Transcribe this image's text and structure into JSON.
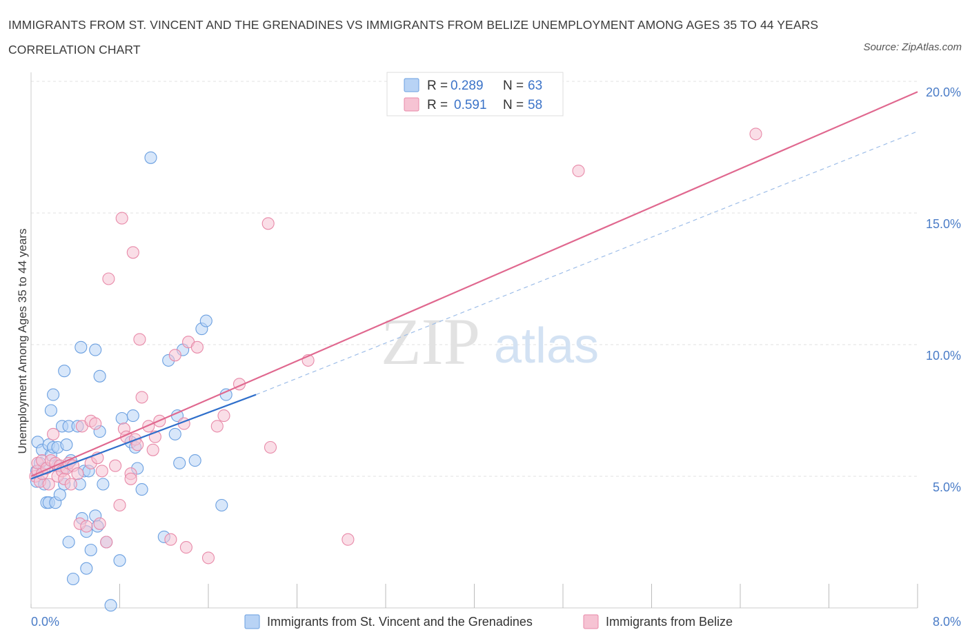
{
  "header": {
    "title": "IMMIGRANTS FROM ST. VINCENT AND THE GRENADINES VS IMMIGRANTS FROM BELIZE UNEMPLOYMENT AMONG AGES 35 TO 44 YEARS CORRELATION CHART",
    "source": "Source: ZipAtlas.com"
  },
  "watermark": {
    "zip": "ZIP",
    "atlas": "atlas"
  },
  "colors": {
    "blue": "#6a9fe0",
    "blue_fill": "#b8d3f5",
    "blue_line": "#2f6fcb",
    "pink": "#e889a8",
    "pink_fill": "#f6c3d3",
    "pink_line": "#e0688f",
    "grid": "#e0e0e0",
    "tick_label": "#4a7cc7"
  },
  "legend": {
    "rows": [
      {
        "r_label": "R =",
        "r_value": "0.289",
        "n_label": "N =",
        "n_value": "63"
      },
      {
        "r_label": "R =",
        "r_value": "0.591",
        "n_label": "N =",
        "n_value": "58"
      }
    ]
  },
  "chart_data": {
    "type": "scatter",
    "title": "IMMIGRANTS FROM ST. VINCENT AND THE GRENADINES VS IMMIGRANTS FROM BELIZE UNEMPLOYMENT AMONG AGES 35 TO 44 YEARS CORRELATION CHART",
    "xlabel": "",
    "ylabel": "Unemployment Among Ages 35 to 44 years",
    "xlim": [
      0,
      8
    ],
    "ylim": [
      0,
      20
    ],
    "x_tick_labels": [
      "0.0%",
      "8.0%"
    ],
    "y_ticks": [
      5,
      10,
      15,
      20
    ],
    "y_tick_labels": [
      "5.0%",
      "10.0%",
      "15.0%",
      "20.0%"
    ],
    "grid": true,
    "legend_position": "top-center",
    "series": [
      {
        "name": "Immigrants from St. Vincent and the Grenadines",
        "color": "#6a9fe0",
        "R": 0.289,
        "N": 63,
        "trend": {
          "x": [
            0.0,
            2.03
          ],
          "y": [
            4.9,
            8.1
          ]
        },
        "trend_dashed_extension": {
          "x": [
            2.03,
            8.0
          ],
          "y": [
            8.1,
            18.1
          ]
        },
        "points": [
          [
            0.05,
            5.2
          ],
          [
            0.05,
            4.8
          ],
          [
            0.06,
            6.3
          ],
          [
            0.08,
            5.5
          ],
          [
            0.1,
            6.0
          ],
          [
            0.12,
            5.3
          ],
          [
            0.12,
            4.7
          ],
          [
            0.14,
            4.0
          ],
          [
            0.16,
            6.2
          ],
          [
            0.16,
            4.0
          ],
          [
            0.18,
            7.5
          ],
          [
            0.18,
            5.8
          ],
          [
            0.2,
            8.1
          ],
          [
            0.2,
            6.1
          ],
          [
            0.22,
            4.0
          ],
          [
            0.24,
            6.1
          ],
          [
            0.24,
            5.4
          ],
          [
            0.26,
            4.3
          ],
          [
            0.28,
            6.9
          ],
          [
            0.3,
            5.3
          ],
          [
            0.3,
            4.7
          ],
          [
            0.3,
            9.0
          ],
          [
            0.32,
            6.2
          ],
          [
            0.34,
            6.9
          ],
          [
            0.34,
            2.5
          ],
          [
            0.36,
            5.6
          ],
          [
            0.38,
            1.1
          ],
          [
            0.42,
            6.9
          ],
          [
            0.44,
            4.7
          ],
          [
            0.45,
            9.9
          ],
          [
            0.46,
            3.4
          ],
          [
            0.48,
            5.2
          ],
          [
            0.5,
            1.5
          ],
          [
            0.5,
            2.9
          ],
          [
            0.52,
            5.2
          ],
          [
            0.54,
            2.2
          ],
          [
            0.58,
            9.8
          ],
          [
            0.58,
            3.5
          ],
          [
            0.6,
            3.1
          ],
          [
            0.62,
            8.8
          ],
          [
            0.62,
            6.7
          ],
          [
            0.65,
            4.7
          ],
          [
            0.68,
            2.5
          ],
          [
            0.72,
            0.1
          ],
          [
            0.8,
            1.8
          ],
          [
            0.82,
            7.2
          ],
          [
            0.9,
            6.3
          ],
          [
            0.92,
            7.3
          ],
          [
            0.94,
            6.1
          ],
          [
            0.96,
            5.3
          ],
          [
            1.0,
            4.5
          ],
          [
            1.08,
            17.1
          ],
          [
            1.2,
            2.7
          ],
          [
            1.24,
            9.4
          ],
          [
            1.3,
            6.6
          ],
          [
            1.32,
            7.3
          ],
          [
            1.34,
            5.5
          ],
          [
            1.37,
            9.8
          ],
          [
            1.48,
            5.6
          ],
          [
            1.54,
            10.6
          ],
          [
            1.58,
            10.9
          ],
          [
            1.72,
            3.9
          ],
          [
            1.76,
            8.1
          ]
        ]
      },
      {
        "name": "Immigrants from Belize",
        "color": "#e889a8",
        "R": 0.591,
        "N": 58,
        "trend": {
          "x": [
            0.0,
            8.0
          ],
          "y": [
            5.0,
            19.6
          ]
        },
        "points": [
          [
            0.04,
            5.0
          ],
          [
            0.06,
            5.2
          ],
          [
            0.06,
            5.5
          ],
          [
            0.08,
            4.8
          ],
          [
            0.1,
            5.6
          ],
          [
            0.1,
            5.1
          ],
          [
            0.14,
            5.3
          ],
          [
            0.16,
            4.7
          ],
          [
            0.18,
            5.6
          ],
          [
            0.2,
            6.6
          ],
          [
            0.22,
            5.5
          ],
          [
            0.24,
            5.0
          ],
          [
            0.26,
            5.4
          ],
          [
            0.28,
            5.2
          ],
          [
            0.3,
            4.9
          ],
          [
            0.32,
            5.3
          ],
          [
            0.34,
            5.5
          ],
          [
            0.36,
            4.7
          ],
          [
            0.38,
            5.4
          ],
          [
            0.42,
            5.1
          ],
          [
            0.44,
            3.2
          ],
          [
            0.46,
            6.9
          ],
          [
            0.5,
            3.1
          ],
          [
            0.54,
            5.5
          ],
          [
            0.54,
            7.1
          ],
          [
            0.58,
            7.0
          ],
          [
            0.6,
            5.7
          ],
          [
            0.62,
            3.2
          ],
          [
            0.64,
            5.2
          ],
          [
            0.68,
            2.5
          ],
          [
            0.7,
            12.5
          ],
          [
            0.76,
            5.4
          ],
          [
            0.8,
            3.9
          ],
          [
            0.82,
            14.8
          ],
          [
            0.84,
            6.8
          ],
          [
            0.86,
            6.5
          ],
          [
            0.9,
            5.1
          ],
          [
            0.9,
            4.9
          ],
          [
            0.92,
            13.5
          ],
          [
            0.94,
            6.4
          ],
          [
            0.96,
            6.2
          ],
          [
            0.98,
            10.2
          ],
          [
            1.0,
            8.0
          ],
          [
            1.06,
            6.9
          ],
          [
            1.1,
            6.0
          ],
          [
            1.12,
            6.5
          ],
          [
            1.16,
            7.1
          ],
          [
            1.26,
            2.6
          ],
          [
            1.3,
            9.6
          ],
          [
            1.38,
            7.0
          ],
          [
            1.4,
            2.3
          ],
          [
            1.42,
            10.1
          ],
          [
            1.5,
            9.9
          ],
          [
            1.6,
            1.9
          ],
          [
            1.68,
            6.9
          ],
          [
            1.74,
            7.3
          ],
          [
            1.88,
            8.5
          ],
          [
            2.14,
            14.6
          ]
        ],
        "extra_points": [
          [
            2.16,
            6.1
          ],
          [
            2.5,
            9.4
          ],
          [
            2.86,
            2.6
          ],
          [
            4.94,
            16.6
          ],
          [
            6.54,
            18.0
          ]
        ]
      }
    ]
  }
}
